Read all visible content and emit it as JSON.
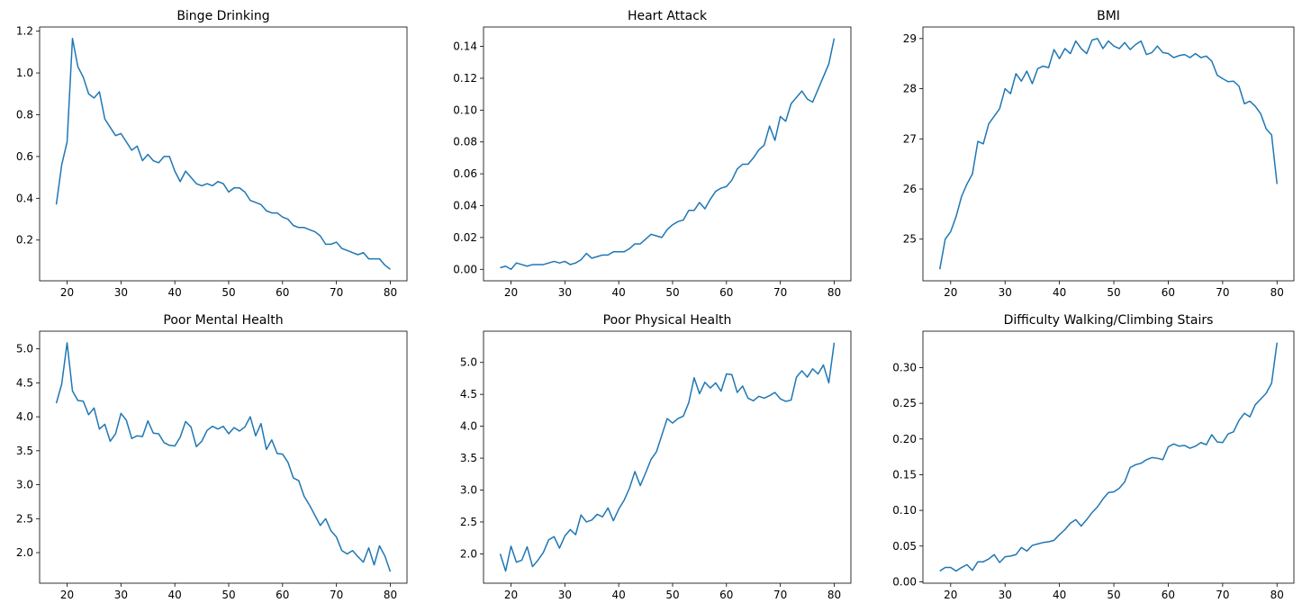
{
  "chart_data": [
    {
      "type": "line",
      "title": "Binge Drinking",
      "color": "#1f77b4",
      "x": [
        18,
        19,
        20,
        21,
        22,
        23,
        24,
        25,
        26,
        27,
        28,
        29,
        30,
        31,
        32,
        33,
        34,
        35,
        36,
        37,
        38,
        39,
        40,
        41,
        42,
        43,
        44,
        45,
        46,
        47,
        48,
        49,
        50,
        51,
        52,
        53,
        54,
        55,
        56,
        57,
        58,
        59,
        60,
        61,
        62,
        63,
        64,
        65,
        66,
        67,
        68,
        69,
        70,
        71,
        72,
        73,
        74,
        75,
        76,
        77,
        78,
        79,
        80
      ],
      "values": [
        0.37,
        0.56,
        0.67,
        1.165,
        1.03,
        0.98,
        0.9,
        0.88,
        0.91,
        0.78,
        0.74,
        0.7,
        0.71,
        0.67,
        0.63,
        0.65,
        0.58,
        0.61,
        0.58,
        0.57,
        0.6,
        0.6,
        0.53,
        0.48,
        0.53,
        0.5,
        0.47,
        0.46,
        0.47,
        0.46,
        0.48,
        0.47,
        0.43,
        0.45,
        0.45,
        0.43,
        0.39,
        0.38,
        0.37,
        0.34,
        0.33,
        0.33,
        0.31,
        0.3,
        0.27,
        0.26,
        0.26,
        0.25,
        0.24,
        0.22,
        0.18,
        0.18,
        0.19,
        0.16,
        0.15,
        0.14,
        0.13,
        0.14,
        0.11,
        0.11,
        0.11,
        0.08,
        0.06
      ],
      "xlim": [
        14.9,
        83.1
      ],
      "xticks": [
        20,
        30,
        40,
        50,
        60,
        70,
        80
      ],
      "ylim": [
        0.005,
        1.22
      ],
      "yticks": [
        0.2,
        0.4,
        0.6,
        0.8,
        {
          "value": 1.0,
          "label": "1.0"
        },
        1.2
      ]
    },
    {
      "type": "line",
      "title": "Heart Attack",
      "color": "#1f77b4",
      "x": [
        18,
        19,
        20,
        21,
        22,
        23,
        24,
        25,
        26,
        27,
        28,
        29,
        30,
        31,
        32,
        33,
        34,
        35,
        36,
        37,
        38,
        39,
        40,
        41,
        42,
        43,
        44,
        45,
        46,
        47,
        48,
        49,
        50,
        51,
        52,
        53,
        54,
        55,
        56,
        57,
        58,
        59,
        60,
        61,
        62,
        63,
        64,
        65,
        66,
        67,
        68,
        69,
        70,
        71,
        72,
        73,
        74,
        75,
        76,
        77,
        78,
        79,
        80
      ],
      "values": [
        0.001,
        0.002,
        0.0,
        0.004,
        0.003,
        0.002,
        0.003,
        0.003,
        0.003,
        0.004,
        0.005,
        0.004,
        0.005,
        0.003,
        0.004,
        0.006,
        0.01,
        0.007,
        0.008,
        0.009,
        0.009,
        0.011,
        0.011,
        0.011,
        0.013,
        0.016,
        0.016,
        0.019,
        0.022,
        0.021,
        0.02,
        0.025,
        0.028,
        0.03,
        0.031,
        0.037,
        0.037,
        0.042,
        0.038,
        0.044,
        0.049,
        0.051,
        0.052,
        0.056,
        0.063,
        0.066,
        0.066,
        0.07,
        0.075,
        0.078,
        0.09,
        0.081,
        0.096,
        0.093,
        0.104,
        0.108,
        0.112,
        0.107,
        0.105,
        0.113,
        0.121,
        0.129,
        0.145
      ],
      "xlim": [
        14.9,
        83.1
      ],
      "xticks": [
        20,
        30,
        40,
        50,
        60,
        70,
        80
      ],
      "ylim": [
        -0.0072,
        0.1522
      ],
      "yticks": [
        {
          "value": 0,
          "label": "0.00"
        },
        {
          "value": 0.02,
          "label": "0.02"
        },
        {
          "value": 0.04,
          "label": "0.04"
        },
        {
          "value": 0.06,
          "label": "0.06"
        },
        {
          "value": 0.08,
          "label": "0.08"
        },
        {
          "value": 0.1,
          "label": "0.10"
        },
        {
          "value": 0.12,
          "label": "0.12"
        },
        {
          "value": 0.14,
          "label": "0.14"
        }
      ]
    },
    {
      "type": "line",
      "title": "BMI",
      "color": "#1f77b4",
      "x": [
        18,
        19,
        20,
        21,
        22,
        23,
        24,
        25,
        26,
        27,
        28,
        29,
        30,
        31,
        32,
        33,
        34,
        35,
        36,
        37,
        38,
        39,
        40,
        41,
        42,
        43,
        44,
        45,
        46,
        47,
        48,
        49,
        50,
        51,
        52,
        53,
        54,
        55,
        56,
        57,
        58,
        59,
        60,
        61,
        62,
        63,
        64,
        65,
        66,
        67,
        68,
        69,
        70,
        71,
        72,
        73,
        74,
        75,
        76,
        77,
        78,
        79,
        80
      ],
      "values": [
        24.4,
        25.0,
        25.15,
        25.45,
        25.85,
        26.1,
        26.3,
        26.95,
        26.9,
        27.3,
        27.45,
        27.6,
        28.0,
        27.9,
        28.3,
        28.15,
        28.35,
        28.1,
        28.4,
        28.45,
        28.42,
        28.78,
        28.6,
        28.8,
        28.7,
        28.95,
        28.8,
        28.7,
        28.97,
        29.0,
        28.8,
        28.95,
        28.85,
        28.8,
        28.92,
        28.78,
        28.88,
        28.95,
        28.68,
        28.72,
        28.85,
        28.72,
        28.7,
        28.62,
        28.66,
        28.68,
        28.62,
        28.7,
        28.62,
        28.65,
        28.55,
        28.27,
        28.2,
        28.14,
        28.15,
        28.05,
        27.7,
        27.75,
        27.65,
        27.5,
        27.2,
        27.08,
        26.1
      ],
      "xlim": [
        14.9,
        83.1
      ],
      "xticks": [
        20,
        30,
        40,
        50,
        60,
        70,
        80
      ],
      "ylim": [
        24.17,
        29.23
      ],
      "yticks": [
        25,
        26,
        27,
        28,
        29
      ]
    },
    {
      "type": "line",
      "title": "Poor Mental Health",
      "color": "#1f77b4",
      "x": [
        18,
        19,
        20,
        21,
        22,
        23,
        24,
        25,
        26,
        27,
        28,
        29,
        30,
        31,
        32,
        33,
        34,
        35,
        36,
        37,
        38,
        39,
        40,
        41,
        42,
        43,
        44,
        45,
        46,
        47,
        48,
        49,
        50,
        51,
        52,
        53,
        54,
        55,
        56,
        57,
        58,
        59,
        60,
        61,
        62,
        63,
        64,
        65,
        66,
        67,
        68,
        69,
        70,
        71,
        72,
        73,
        74,
        75,
        76,
        77,
        78,
        79,
        80
      ],
      "values": [
        4.2,
        4.48,
        5.09,
        4.38,
        4.24,
        4.23,
        4.03,
        4.13,
        3.82,
        3.89,
        3.64,
        3.75,
        4.05,
        3.95,
        3.68,
        3.72,
        3.71,
        3.94,
        3.76,
        3.75,
        3.62,
        3.58,
        3.57,
        3.7,
        3.93,
        3.85,
        3.56,
        3.64,
        3.8,
        3.86,
        3.82,
        3.86,
        3.75,
        3.84,
        3.79,
        3.85,
        4.0,
        3.72,
        3.9,
        3.52,
        3.66,
        3.46,
        3.45,
        3.33,
        3.1,
        3.06,
        2.83,
        2.7,
        2.55,
        2.4,
        2.5,
        2.32,
        2.23,
        2.03,
        1.98,
        2.03,
        1.94,
        1.86,
        2.07,
        1.82,
        2.1,
        1.95,
        1.72
      ],
      "xlim": [
        14.9,
        83.1
      ],
      "xticks": [
        20,
        30,
        40,
        50,
        60,
        70,
        80
      ],
      "ylim": [
        1.55,
        5.26
      ],
      "yticks": [
        {
          "value": 2,
          "label": "2.0"
        },
        2.5,
        {
          "value": 3,
          "label": "3.0"
        },
        3.5,
        {
          "value": 4,
          "label": "4.0"
        },
        4.5,
        {
          "value": 5,
          "label": "5.0"
        }
      ]
    },
    {
      "type": "line",
      "title": "Poor Physical Health",
      "color": "#1f77b4",
      "x": [
        18,
        19,
        20,
        21,
        22,
        23,
        24,
        25,
        26,
        27,
        28,
        29,
        30,
        31,
        32,
        33,
        34,
        35,
        36,
        37,
        38,
        39,
        40,
        41,
        42,
        43,
        44,
        45,
        46,
        47,
        48,
        49,
        50,
        51,
        52,
        53,
        54,
        55,
        56,
        57,
        58,
        59,
        60,
        61,
        62,
        63,
        64,
        65,
        66,
        67,
        68,
        69,
        70,
        71,
        72,
        73,
        74,
        75,
        76,
        77,
        78,
        79,
        80
      ],
      "values": [
        2.0,
        1.73,
        2.12,
        1.87,
        1.9,
        2.11,
        1.8,
        1.9,
        2.02,
        2.22,
        2.27,
        2.09,
        2.28,
        2.38,
        2.3,
        2.61,
        2.5,
        2.53,
        2.62,
        2.58,
        2.72,
        2.52,
        2.7,
        2.84,
        3.03,
        3.29,
        3.07,
        3.27,
        3.48,
        3.6,
        3.86,
        4.12,
        4.05,
        4.12,
        4.16,
        4.37,
        4.76,
        4.51,
        4.69,
        4.6,
        4.68,
        4.55,
        4.82,
        4.81,
        4.53,
        4.63,
        4.44,
        4.4,
        4.47,
        4.44,
        4.48,
        4.53,
        4.43,
        4.39,
        4.41,
        4.77,
        4.87,
        4.77,
        4.9,
        4.82,
        4.96,
        4.68,
        5.31
      ],
      "xlim": [
        14.9,
        83.1
      ],
      "xticks": [
        20,
        30,
        40,
        50,
        60,
        70,
        80
      ],
      "ylim": [
        1.54,
        5.49
      ],
      "yticks": [
        {
          "value": 2,
          "label": "2.0"
        },
        2.5,
        {
          "value": 3,
          "label": "3.0"
        },
        3.5,
        {
          "value": 4,
          "label": "4.0"
        },
        4.5,
        {
          "value": 5,
          "label": "5.0"
        }
      ]
    },
    {
      "type": "line",
      "title": "Difficulty Walking/Climbing Stairs",
      "color": "#1f77b4",
      "x": [
        18,
        19,
        20,
        21,
        22,
        23,
        24,
        25,
        26,
        27,
        28,
        29,
        30,
        31,
        32,
        33,
        34,
        35,
        36,
        37,
        38,
        39,
        40,
        41,
        42,
        43,
        44,
        45,
        46,
        47,
        48,
        49,
        50,
        51,
        52,
        53,
        54,
        55,
        56,
        57,
        58,
        59,
        60,
        61,
        62,
        63,
        64,
        65,
        66,
        67,
        68,
        69,
        70,
        71,
        72,
        73,
        74,
        75,
        76,
        77,
        78,
        79,
        80
      ],
      "values": [
        0.015,
        0.02,
        0.02,
        0.015,
        0.02,
        0.024,
        0.016,
        0.028,
        0.028,
        0.032,
        0.038,
        0.027,
        0.035,
        0.036,
        0.038,
        0.048,
        0.043,
        0.051,
        0.053,
        0.055,
        0.056,
        0.058,
        0.066,
        0.073,
        0.082,
        0.087,
        0.078,
        0.087,
        0.097,
        0.105,
        0.116,
        0.125,
        0.126,
        0.131,
        0.14,
        0.16,
        0.164,
        0.166,
        0.171,
        0.174,
        0.173,
        0.171,
        0.189,
        0.193,
        0.19,
        0.191,
        0.187,
        0.19,
        0.195,
        0.192,
        0.206,
        0.196,
        0.195,
        0.207,
        0.21,
        0.226,
        0.236,
        0.231,
        0.248,
        0.256,
        0.264,
        0.278,
        0.335
      ],
      "xlim": [
        14.9,
        83.1
      ],
      "xticks": [
        20,
        30,
        40,
        50,
        60,
        70,
        80
      ],
      "ylim": [
        -0.002,
        0.351
      ],
      "yticks": [
        {
          "value": 0,
          "label": "0.00"
        },
        0.05,
        {
          "value": 0.1,
          "label": "0.10"
        },
        0.15,
        {
          "value": 0.2,
          "label": "0.20"
        },
        0.25,
        {
          "value": 0.3,
          "label": "0.30"
        }
      ]
    }
  ]
}
